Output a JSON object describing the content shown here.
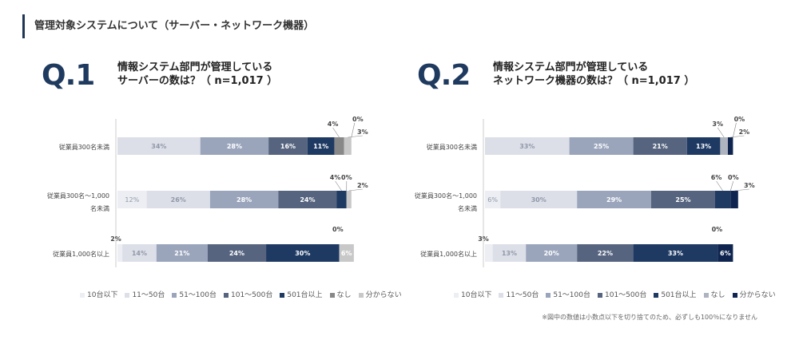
{
  "page_title": "管理対象システムについて（サーバー・ネットワーク機器）",
  "footnote": "※図中の数値は小数点以下を切り捨てのため、必ずしも100％になりません",
  "categories_legend": [
    "10台以下",
    "11～50台",
    "51～100台",
    "101～500台",
    "501台以上",
    "なし",
    "分からない"
  ],
  "colors": [
    "#eceef3",
    "#dcdfe8",
    "#9aa5bc",
    "#56647f",
    "#1e3a63",
    "#888888",
    "#c8c8c8"
  ],
  "colors_q2": [
    "#eceef3",
    "#dcdfe8",
    "#9aa5bc",
    "#56647f",
    "#1e3a63",
    "#aeb4bf",
    "#0f2550"
  ],
  "chart_data": [
    {
      "type": "bar",
      "q_label": "Q.1",
      "question_line1": "情報システム部門が管理している",
      "question_line2": "サーバーの数は？（ n=1,017 ）",
      "categories": [
        "従業員300名未満",
        "従業員300名～1,000名未満",
        "従業員1,000名以上"
      ],
      "category_lines": [
        [
          "従業員300名未満"
        ],
        [
          "従業員300名～1,000",
          "名未満"
        ],
        [
          "従業員1,000名以上"
        ]
      ],
      "series": [
        {
          "name": "10台以下",
          "values": [
            0,
            12,
            2
          ]
        },
        {
          "name": "11～50台",
          "values": [
            34,
            26,
            14
          ]
        },
        {
          "name": "51～100台",
          "values": [
            28,
            28,
            21
          ]
        },
        {
          "name": "101～500台",
          "values": [
            16,
            24,
            24
          ]
        },
        {
          "name": "501台以上",
          "values": [
            11,
            4,
            30
          ]
        },
        {
          "name": "なし",
          "values": [
            4,
            0,
            0
          ]
        },
        {
          "name": "分からない",
          "values": [
            3,
            2,
            6
          ]
        }
      ],
      "value_labels": [
        [
          "",
          "34%",
          "28%",
          "16%",
          "11%",
          "4%",
          "3%"
        ],
        [
          "12%",
          "26%",
          "28%",
          "24%",
          "4%",
          "0%",
          "2%"
        ],
        [
          "2%",
          "14%",
          "21%",
          "24%",
          "30%",
          "0%",
          "6%"
        ]
      ],
      "extra_labels": [
        [
          "0%"
        ],
        [],
        []
      ]
    },
    {
      "type": "bar",
      "q_label": "Q.2",
      "question_line1": "情報システム部門が管理している",
      "question_line2": "ネットワーク機器の数は？（ n=1,017 ）",
      "categories": [
        "従業員300名未満",
        "従業員300名～1,000名未満",
        "従業員1,000名以上"
      ],
      "category_lines": [
        [
          "従業員300名未満"
        ],
        [
          "従業員300名～1,000",
          "名未満"
        ],
        [
          "従業員1,000名以上"
        ]
      ],
      "series": [
        {
          "name": "10台以下",
          "values": [
            0,
            6,
            3
          ]
        },
        {
          "name": "11～50台",
          "values": [
            33,
            30,
            13
          ]
        },
        {
          "name": "51～100台",
          "values": [
            25,
            29,
            20
          ]
        },
        {
          "name": "101～500台",
          "values": [
            21,
            25,
            22
          ]
        },
        {
          "name": "501台以上",
          "values": [
            13,
            6,
            33
          ]
        },
        {
          "name": "なし",
          "values": [
            3,
            0,
            0
          ]
        },
        {
          "name": "分からない",
          "values": [
            2,
            3,
            6
          ]
        }
      ],
      "value_labels": [
        [
          "",
          "33%",
          "25%",
          "21%",
          "13%",
          "3%",
          "2%"
        ],
        [
          "6%",
          "30%",
          "29%",
          "25%",
          "6%",
          "0%",
          "3%"
        ],
        [
          "3%",
          "13%",
          "20%",
          "22%",
          "33%",
          "0%",
          "6%"
        ]
      ],
      "extra_labels": [
        [
          "0%"
        ],
        [],
        []
      ]
    }
  ]
}
